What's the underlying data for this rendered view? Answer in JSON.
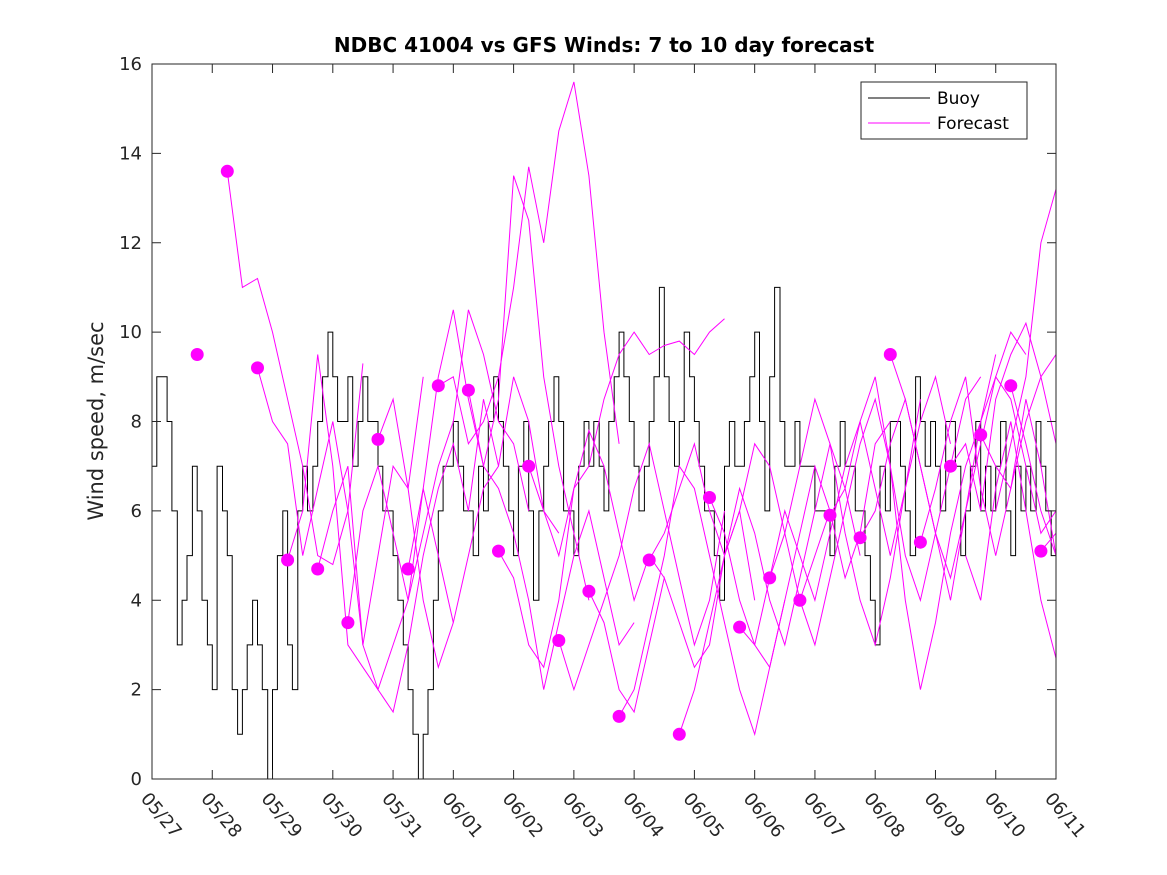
{
  "chart_data": {
    "type": "line",
    "title": "NDBC 41004 vs GFS Winds: 7 to 10 day forecast",
    "xlabel": "",
    "ylabel": "Wind speed, m/sec",
    "xlim": [
      0,
      15
    ],
    "ylim": [
      0,
      16
    ],
    "x_ticks": [
      "05/27",
      "05/28",
      "05/29",
      "05/30",
      "05/31",
      "06/01",
      "06/02",
      "06/03",
      "06/04",
      "06/05",
      "06/06",
      "06/07",
      "06/08",
      "06/09",
      "06/10",
      "06/11"
    ],
    "y_ticks": [
      0,
      2,
      4,
      6,
      8,
      10,
      12,
      14,
      16
    ],
    "grid": false,
    "legend_position": "top-right",
    "colors": {
      "buoy": "#000000",
      "forecast": "#ff00ff"
    },
    "series": [
      {
        "name": "Buoy",
        "x": [
          0.0,
          0.08,
          0.17,
          0.25,
          0.33,
          0.42,
          0.5,
          0.58,
          0.67,
          0.75,
          0.83,
          0.92,
          1.0,
          1.08,
          1.17,
          1.25,
          1.33,
          1.42,
          1.5,
          1.58,
          1.67,
          1.75,
          1.83,
          1.92,
          2.0,
          2.08,
          2.17,
          2.25,
          2.33,
          2.42,
          2.5,
          2.58,
          2.67,
          2.75,
          2.83,
          2.92,
          3.0,
          3.08,
          3.17,
          3.25,
          3.33,
          3.42,
          3.5,
          3.58,
          3.67,
          3.75,
          3.83,
          3.92,
          4.0,
          4.08,
          4.17,
          4.25,
          4.33,
          4.42,
          4.5,
          4.58,
          4.67,
          4.75,
          4.83,
          4.92,
          5.0,
          5.08,
          5.17,
          5.25,
          5.33,
          5.42,
          5.5,
          5.58,
          5.67,
          5.75,
          5.83,
          5.92,
          6.0,
          6.08,
          6.17,
          6.25,
          6.33,
          6.42,
          6.5,
          6.58,
          6.67,
          6.75,
          6.83,
          6.92,
          7.0,
          7.08,
          7.17,
          7.25,
          7.33,
          7.42,
          7.5,
          7.58,
          7.67,
          7.75,
          7.83,
          7.92,
          8.0,
          8.08,
          8.17,
          8.25,
          8.33,
          8.42,
          8.5,
          8.58,
          8.67,
          8.75,
          8.83,
          8.92,
          9.0,
          9.08,
          9.17,
          9.25,
          9.33,
          9.42,
          9.5,
          9.58,
          9.67,
          9.75,
          9.83,
          9.92,
          10.0,
          10.08,
          10.17,
          10.25,
          10.33,
          10.42,
          10.5,
          10.58,
          10.67,
          10.75,
          10.83,
          10.92,
          11.0,
          11.08,
          11.17,
          11.25,
          11.33,
          11.42,
          11.5,
          11.58,
          11.67,
          11.75,
          11.83,
          11.92,
          12.0,
          12.08,
          12.17,
          12.25,
          12.33,
          12.42,
          12.5,
          12.58,
          12.67,
          12.75,
          12.83,
          12.92,
          13.0,
          13.08,
          13.17,
          13.25,
          13.33,
          13.42,
          13.5,
          13.58,
          13.67,
          13.75,
          13.83,
          13.92,
          14.0,
          14.08,
          14.17,
          14.25,
          14.33,
          14.42,
          14.5,
          14.58,
          14.67,
          14.75,
          14.83,
          14.92,
          15.0
        ],
        "values": [
          7,
          9,
          9,
          8,
          6,
          3,
          4,
          5,
          7,
          6,
          4,
          3,
          2,
          7,
          6,
          5,
          2,
          1,
          2,
          3,
          4,
          3,
          2,
          0,
          2,
          5,
          6,
          3,
          2,
          6,
          7,
          6,
          7,
          8,
          9,
          10,
          9,
          8,
          8,
          9,
          7,
          8,
          9,
          8,
          8,
          7,
          6,
          6,
          5,
          4,
          3,
          2,
          1,
          0,
          1,
          2,
          4,
          6,
          7,
          7,
          8,
          7,
          6,
          6,
          5,
          7,
          6,
          8,
          9,
          8,
          7,
          6,
          5,
          7,
          8,
          6,
          4,
          6,
          7,
          8,
          9,
          8,
          6,
          6,
          5,
          7,
          8,
          7,
          8,
          7,
          6,
          8,
          9,
          10,
          9,
          8,
          7,
          6,
          7,
          8,
          9,
          11,
          9,
          8,
          7,
          8,
          10,
          9,
          8,
          7,
          6,
          6,
          5,
          4,
          7,
          8,
          7,
          7,
          8,
          9,
          10,
          8,
          6,
          9,
          11,
          8,
          7,
          7,
          8,
          7,
          7,
          7,
          6,
          6,
          6,
          5,
          7,
          8,
          7,
          7,
          6,
          6,
          5,
          4,
          3,
          7,
          6,
          8,
          8,
          7,
          6,
          5,
          9,
          8,
          7,
          8,
          7,
          6,
          8,
          8,
          7,
          5,
          6,
          7,
          8,
          6,
          7,
          6,
          7,
          8,
          6,
          5,
          7,
          6,
          7,
          6,
          8,
          7,
          6,
          5,
          6
        ]
      },
      {
        "name": "Forecast",
        "x": [
          1.25,
          1.5,
          1.75,
          2.0,
          2.25,
          2.5,
          2.75,
          3.0,
          3.25,
          3.5
        ],
        "values": [
          13.6,
          11.0,
          11.2,
          10.0,
          8.5,
          7.0,
          5.0,
          4.8,
          6.0,
          9.3
        ]
      },
      {
        "name": "",
        "x": [
          1.75,
          2.0,
          2.25,
          2.5,
          2.75,
          3.0,
          3.25,
          3.5,
          3.75,
          4.0,
          4.25,
          4.5
        ],
        "values": [
          9.2,
          8.0,
          7.5,
          5.0,
          6.5,
          8.0,
          6.0,
          3.0,
          5.0,
          7.0,
          6.5,
          9.0
        ]
      },
      {
        "name": "",
        "x": [
          2.25,
          2.5,
          2.75,
          3.0,
          3.25,
          3.5,
          3.75,
          4.0,
          4.25,
          4.5,
          4.75,
          5.0
        ],
        "values": [
          4.9,
          6.0,
          9.5,
          7.0,
          3.0,
          2.5,
          2.0,
          3.0,
          4.0,
          6.5,
          5.0,
          3.5
        ]
      },
      {
        "name": "",
        "x": [
          2.75,
          3.0,
          3.25,
          3.5,
          3.75,
          4.0,
          4.25,
          4.5,
          4.75,
          5.0,
          5.25,
          5.5,
          5.75
        ],
        "values": [
          4.7,
          6.0,
          7.0,
          3.0,
          2.0,
          1.5,
          3.0,
          5.0,
          6.5,
          7.5,
          6.0,
          8.5,
          7.0
        ]
      },
      {
        "name": "",
        "x": [
          3.25,
          3.5,
          3.75,
          4.0,
          4.25,
          4.5,
          4.75,
          5.0,
          5.25,
          5.5,
          5.75,
          6.0,
          6.25
        ],
        "values": [
          3.5,
          6.0,
          7.0,
          5.5,
          4.0,
          5.5,
          7.0,
          8.0,
          10.5,
          9.5,
          8.0,
          7.5,
          6.0
        ]
      },
      {
        "name": "",
        "x": [
          3.75,
          4.0,
          4.25,
          4.5,
          4.75,
          5.0,
          5.25,
          5.5,
          5.75,
          6.0,
          6.25,
          6.5,
          6.75
        ],
        "values": [
          7.6,
          8.5,
          6.5,
          4.0,
          2.5,
          3.5,
          5.0,
          6.5,
          7.0,
          9.0,
          8.0,
          6.0,
          5.5
        ]
      },
      {
        "name": "",
        "x": [
          4.25,
          4.5,
          4.75,
          5.0,
          5.25,
          5.5,
          5.75,
          6.0,
          6.25,
          6.5,
          6.75,
          7.0,
          7.25
        ],
        "values": [
          4.7,
          6.5,
          9.0,
          10.5,
          8.5,
          7.0,
          8.5,
          13.5,
          12.5,
          9.0,
          7.0,
          5.5,
          4.0
        ]
      },
      {
        "name": "",
        "x": [
          4.75,
          5.0,
          5.25,
          5.5,
          5.75,
          6.0,
          6.25,
          6.5,
          6.75,
          7.0,
          7.25,
          7.5,
          7.75
        ],
        "values": [
          8.8,
          9.0,
          7.5,
          8.0,
          9.0,
          11.0,
          13.7,
          12.0,
          14.5,
          15.6,
          13.5,
          10.0,
          7.5
        ]
      },
      {
        "name": "",
        "x": [
          5.25,
          5.5,
          5.75,
          6.0,
          6.25,
          6.5,
          6.75,
          7.0,
          7.25,
          7.5,
          7.75,
          8.0
        ],
        "values": [
          8.7,
          7.0,
          6.5,
          5.5,
          4.0,
          2.0,
          3.5,
          5.0,
          6.0,
          4.5,
          3.0,
          3.5
        ]
      },
      {
        "name": "",
        "x": [
          5.75,
          6.0,
          6.25,
          6.5,
          6.75,
          7.0,
          7.25,
          7.5,
          7.75,
          8.0,
          8.25,
          8.5
        ],
        "values": [
          5.1,
          4.5,
          3.0,
          2.5,
          4.0,
          6.5,
          7.8,
          7.0,
          5.5,
          4.0,
          5.0,
          4.5
        ]
      },
      {
        "name": "",
        "x": [
          6.25,
          6.5,
          6.75,
          7.0,
          7.25,
          7.5,
          7.75,
          8.0,
          8.25,
          8.5,
          8.75,
          9.0,
          9.25,
          9.5
        ],
        "values": [
          7.0,
          6.0,
          5.0,
          6.5,
          7.0,
          8.5,
          9.5,
          10.0,
          9.5,
          9.7,
          9.8,
          9.5,
          10.0,
          10.3
        ]
      },
      {
        "name": "",
        "x": [
          6.75,
          7.0,
          7.25,
          7.5,
          7.75,
          8.0,
          8.25,
          8.5,
          8.75,
          9.0,
          9.25,
          9.5
        ],
        "values": [
          3.1,
          2.0,
          3.0,
          4.0,
          5.0,
          6.5,
          7.5,
          6.0,
          4.5,
          3.0,
          4.0,
          6.0
        ]
      },
      {
        "name": "",
        "x": [
          7.25,
          7.5,
          7.75,
          8.0,
          8.25,
          8.5,
          8.75,
          9.0,
          9.25,
          9.5,
          9.75,
          10.0
        ],
        "values": [
          4.2,
          3.5,
          2.0,
          1.5,
          3.0,
          4.5,
          3.5,
          2.5,
          3.0,
          5.0,
          6.0,
          4.0
        ]
      },
      {
        "name": "",
        "x": [
          7.75,
          8.0,
          8.25,
          8.5,
          8.75,
          9.0,
          9.25,
          9.5,
          9.75,
          10.0,
          10.25,
          10.5
        ],
        "values": [
          1.4,
          2.0,
          3.5,
          5.0,
          7.0,
          6.5,
          5.0,
          3.5,
          2.0,
          1.0,
          2.5,
          4.0
        ]
      },
      {
        "name": "",
        "x": [
          8.25,
          8.5,
          8.75,
          9.0,
          9.25,
          9.5,
          9.75,
          10.0,
          10.25,
          10.5,
          10.75,
          11.0,
          11.25
        ],
        "values": [
          4.9,
          5.5,
          6.5,
          7.5,
          6.0,
          5.0,
          6.0,
          7.5,
          7.0,
          5.5,
          4.0,
          5.0,
          6.0
        ]
      },
      {
        "name": "",
        "x": [
          8.75,
          9.0,
          9.25,
          9.5,
          9.75,
          10.0,
          10.25,
          10.5,
          10.75,
          11.0,
          11.25,
          11.5,
          11.75
        ],
        "values": [
          1.0,
          2.0,
          3.5,
          5.0,
          6.5,
          5.5,
          4.0,
          3.0,
          4.5,
          6.0,
          7.5,
          6.5,
          5.0
        ]
      },
      {
        "name": "",
        "x": [
          9.25,
          9.5,
          9.75,
          10.0,
          10.25,
          10.5,
          10.75,
          11.0,
          11.25,
          11.5,
          11.75,
          12.0,
          12.25
        ],
        "values": [
          6.3,
          5.5,
          4.0,
          3.0,
          2.5,
          4.0,
          5.5,
          7.0,
          6.0,
          4.5,
          5.5,
          7.5,
          8.0
        ]
      },
      {
        "name": "",
        "x": [
          9.75,
          10.0,
          10.25,
          10.5,
          10.75,
          11.0,
          11.25,
          11.5,
          11.75,
          12.0,
          12.25,
          12.5,
          12.75
        ],
        "values": [
          3.4,
          3.0,
          4.5,
          6.0,
          5.0,
          4.0,
          5.5,
          7.0,
          8.0,
          6.5,
          5.0,
          6.5,
          8.5
        ]
      },
      {
        "name": "",
        "x": [
          10.25,
          10.5,
          10.75,
          11.0,
          11.25,
          11.5,
          11.75,
          12.0,
          12.25,
          12.5,
          12.75,
          13.0,
          13.25
        ],
        "values": [
          4.5,
          5.5,
          7.0,
          8.5,
          7.5,
          5.5,
          4.0,
          3.0,
          4.5,
          6.5,
          8.0,
          9.0,
          7.5
        ]
      },
      {
        "name": "",
        "x": [
          10.75,
          11.0,
          11.25,
          11.5,
          11.75,
          12.0,
          12.25,
          12.5,
          12.75,
          13.0,
          13.25,
          13.5,
          13.75
        ],
        "values": [
          4.0,
          3.0,
          4.5,
          6.0,
          7.5,
          8.5,
          7.0,
          5.0,
          4.0,
          5.5,
          7.0,
          8.5,
          9.0
        ]
      },
      {
        "name": "",
        "x": [
          11.25,
          11.5,
          11.75,
          12.0,
          12.25,
          12.5,
          12.75,
          13.0,
          13.25,
          13.5,
          13.75,
          14.0
        ],
        "values": [
          5.9,
          6.5,
          8.0,
          9.0,
          7.0,
          4.0,
          2.0,
          3.5,
          5.5,
          7.0,
          8.0,
          9.5
        ]
      },
      {
        "name": "",
        "x": [
          11.75,
          12.0,
          12.25,
          12.5,
          12.75,
          13.0,
          13.25,
          13.5,
          13.75,
          14.0,
          14.25,
          14.5
        ],
        "values": [
          5.4,
          6.0,
          7.5,
          8.5,
          7.0,
          5.5,
          4.5,
          6.0,
          7.5,
          9.0,
          10.0,
          9.5
        ]
      },
      {
        "name": "",
        "x": [
          12.25,
          12.5,
          12.75,
          13.0,
          13.25,
          13.5,
          13.75,
          14.0,
          14.25,
          14.5,
          14.75,
          15.0
        ],
        "values": [
          9.5,
          8.5,
          7.0,
          5.5,
          4.0,
          6.0,
          8.0,
          9.0,
          8.5,
          7.0,
          5.5,
          6.0
        ]
      },
      {
        "name": "",
        "x": [
          12.75,
          13.0,
          13.25,
          13.5,
          13.75,
          14.0,
          14.25,
          14.5,
          14.75,
          15.0
        ],
        "values": [
          5.3,
          6.5,
          8.0,
          9.0,
          6.5,
          5.0,
          6.5,
          8.5,
          7.0,
          5.0
        ]
      },
      {
        "name": "",
        "x": [
          13.25,
          13.5,
          13.75,
          14.0,
          14.25,
          14.5,
          14.75,
          15.0
        ],
        "values": [
          7.0,
          7.5,
          6.0,
          8.5,
          9.5,
          10.2,
          9.0,
          7.5
        ]
      },
      {
        "name": "",
        "x": [
          13.75,
          14.0,
          14.25,
          14.5,
          14.75,
          15.0
        ],
        "values": [
          7.7,
          7.0,
          6.5,
          8.0,
          9.0,
          9.5
        ]
      },
      {
        "name": "",
        "x": [
          14.25,
          14.5,
          14.75,
          15.0
        ],
        "values": [
          8.8,
          7.5,
          6.0,
          5.0
        ]
      },
      {
        "name": "",
        "x": [
          14.75,
          15.0
        ],
        "values": [
          5.1,
          5.5
        ]
      },
      {
        "name": "",
        "x": [
          14.0,
          14.25,
          14.5,
          14.75,
          15.0
        ],
        "values": [
          6.0,
          7.5,
          9.0,
          12.0,
          13.2
        ]
      },
      {
        "name": "",
        "x": [
          13.5,
          13.75,
          14.0,
          14.25,
          14.5,
          14.75,
          15.0
        ],
        "values": [
          5.0,
          4.0,
          6.5,
          8.0,
          6.0,
          4.0,
          2.7
        ]
      }
    ],
    "markers": {
      "name": "Forecast",
      "x": [
        0.75,
        1.25,
        1.75,
        2.25,
        2.75,
        3.25,
        3.75,
        4.25,
        4.75,
        5.25,
        5.75,
        6.25,
        6.75,
        7.25,
        7.75,
        8.25,
        8.75,
        9.25,
        9.75,
        10.25,
        10.75,
        11.25,
        11.75,
        12.25,
        12.75,
        13.25,
        13.75,
        14.25,
        14.75
      ],
      "values": [
        9.5,
        13.6,
        9.2,
        4.9,
        4.7,
        3.5,
        7.6,
        4.7,
        8.8,
        8.7,
        5.1,
        7.0,
        3.1,
        4.2,
        1.4,
        4.9,
        1.0,
        6.3,
        3.4,
        4.5,
        4.0,
        5.9,
        5.4,
        9.5,
        5.3,
        7.0,
        7.7,
        8.8,
        5.1
      ]
    }
  }
}
